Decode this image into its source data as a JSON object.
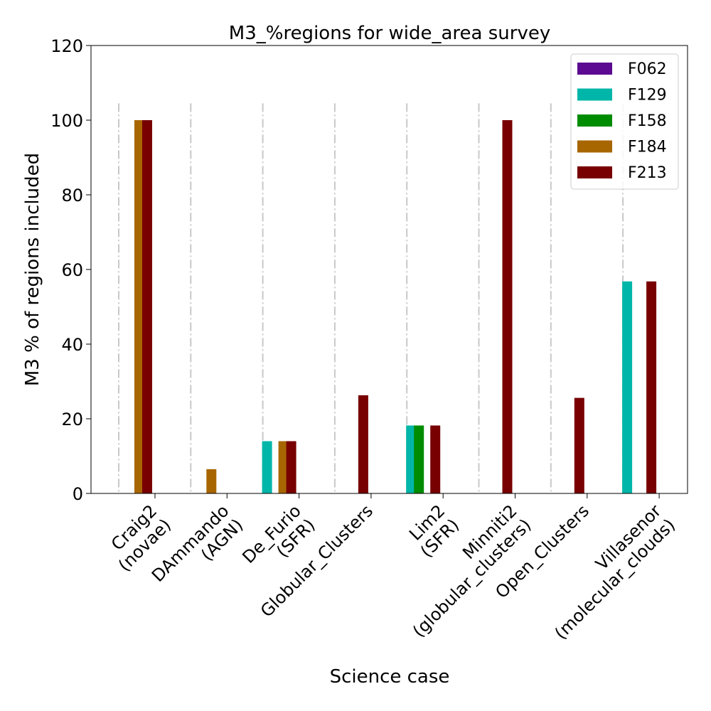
{
  "chart_data": {
    "type": "bar",
    "title": "M3_%regions for wide_area survey",
    "xlabel": "Science case",
    "ylabel": "M3 % of regions included",
    "ylim": [
      0,
      120
    ],
    "yticks": [
      0,
      20,
      40,
      60,
      80,
      100,
      120
    ],
    "grid": "vertical dash-dot separators between categories",
    "legend_position": "top-right",
    "categories": [
      [
        "Craig2",
        "(novae)"
      ],
      [
        "DAmmando",
        "(AGN)"
      ],
      [
        "De_Furio",
        "(SFR)"
      ],
      [
        "Globular_Clusters"
      ],
      [
        "Lim2",
        "(SFR)"
      ],
      [
        "Minniti2",
        "(globular_clusters)"
      ],
      [
        "Open_Clusters"
      ],
      [
        "Villasenor",
        "(molecular_clouds)"
      ]
    ],
    "series": [
      {
        "name": "F062",
        "color": "#5b0a91",
        "values": [
          0,
          0,
          0,
          0,
          0,
          0,
          0,
          0
        ]
      },
      {
        "name": "F129",
        "color": "#00b6a8",
        "values": [
          0,
          0,
          14,
          0,
          18.2,
          0,
          0,
          56.8
        ]
      },
      {
        "name": "F158",
        "color": "#008c00",
        "values": [
          0,
          0,
          0,
          0,
          18.2,
          0,
          0,
          0
        ]
      },
      {
        "name": "F184",
        "color": "#a86600",
        "values": [
          100,
          6.5,
          14,
          0,
          0,
          0,
          0,
          0
        ]
      },
      {
        "name": "F213",
        "color": "#780000",
        "values": [
          100,
          0,
          14,
          26.3,
          18.2,
          100,
          25.6,
          56.8
        ]
      }
    ]
  }
}
